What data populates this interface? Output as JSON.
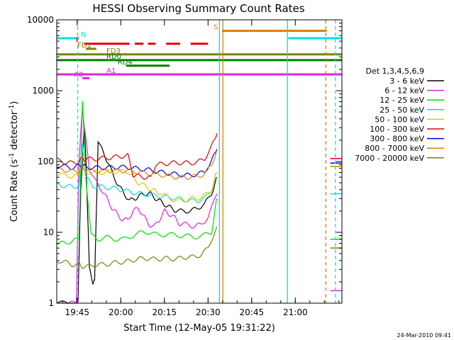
{
  "chart_data": {
    "type": "line",
    "title": "HESSI Observing Summary Count Rates",
    "xlabel": "Start Time (12-May-05 19:31:22)",
    "ylabel_main": "Count Rate (s",
    "ylabel_sup1": "-1",
    "ylabel_mid": " detector",
    "ylabel_sup2": "-1",
    "ylabel_end": ")",
    "yscale": "log",
    "ylim": [
      1,
      10000
    ],
    "xlim_minutes": [
      19.633,
      21.267
    ],
    "x_ticks": [
      {
        "label": "19:45",
        "t": 19.75
      },
      {
        "label": "20:00",
        "t": 20.0
      },
      {
        "label": "20:15",
        "t": 20.25
      },
      {
        "label": "20:30",
        "t": 20.5
      },
      {
        "label": "20:45",
        "t": 20.75
      },
      {
        "label": "21:00",
        "t": 21.0
      }
    ],
    "y_ticks": [
      {
        "label": "1",
        "v": 1
      },
      {
        "label": "10",
        "v": 10
      },
      {
        "label": "100",
        "v": 100
      },
      {
        "label": "1000",
        "v": 1000
      },
      {
        "label": "10000",
        "v": 10000
      }
    ],
    "legend_title": "Det 1,3,4,5,6,9",
    "legend_position": "right",
    "series": [
      {
        "name": "3 - 6 keV",
        "color": "#000000",
        "points": [
          [
            19.636,
            1
          ],
          [
            19.7,
            1
          ],
          [
            19.755,
            1
          ],
          [
            19.77,
            40
          ],
          [
            19.79,
            300
          ],
          [
            19.8,
            120
          ],
          [
            19.82,
            3
          ],
          [
            19.84,
            2
          ],
          [
            19.85,
            2
          ],
          [
            19.87,
            200
          ],
          [
            19.9,
            130
          ],
          [
            19.93,
            95
          ],
          [
            19.96,
            60
          ],
          [
            19.99,
            45
          ],
          [
            20.02,
            35
          ],
          [
            20.05,
            28
          ],
          [
            20.08,
            30
          ],
          [
            20.11,
            33
          ],
          [
            20.14,
            35
          ],
          [
            20.17,
            35
          ],
          [
            20.2,
            30
          ],
          [
            20.23,
            27
          ],
          [
            20.26,
            24
          ],
          [
            20.29,
            22
          ],
          [
            20.32,
            20
          ],
          [
            20.36,
            20
          ],
          [
            20.4,
            20
          ],
          [
            20.44,
            22
          ],
          [
            20.48,
            25
          ],
          [
            20.52,
            35
          ],
          [
            20.55,
            60
          ]
        ]
      },
      {
        "name": "6 - 12 keV",
        "color": "#e020e0",
        "points": [
          [
            19.636,
            1
          ],
          [
            19.7,
            1
          ],
          [
            19.745,
            1
          ],
          [
            19.76,
            90
          ],
          [
            19.78,
            600
          ],
          [
            19.8,
            200
          ],
          [
            19.82,
            80
          ],
          [
            19.86,
            50
          ],
          [
            19.89,
            40
          ],
          [
            19.92,
            30
          ],
          [
            19.95,
            22
          ],
          [
            19.98,
            18
          ],
          [
            20.01,
            15
          ],
          [
            20.04,
            15
          ],
          [
            20.07,
            20
          ],
          [
            20.1,
            22
          ],
          [
            20.13,
            17
          ],
          [
            20.16,
            13
          ],
          [
            20.19,
            12
          ],
          [
            20.22,
            15
          ],
          [
            20.25,
            20
          ],
          [
            20.28,
            18
          ],
          [
            20.31,
            16
          ],
          [
            20.34,
            13
          ],
          [
            20.38,
            13
          ],
          [
            20.42,
            12
          ],
          [
            20.46,
            13
          ],
          [
            20.5,
            16
          ],
          [
            20.55,
            35
          ]
        ]
      },
      {
        "name": "12 - 25 keV",
        "color": "#00e000",
        "points": [
          [
            19.636,
            7
          ],
          [
            19.68,
            7
          ],
          [
            19.72,
            7.5
          ],
          [
            19.76,
            8
          ],
          [
            19.78,
            700
          ],
          [
            19.8,
            60
          ],
          [
            19.83,
            9
          ],
          [
            19.87,
            8
          ],
          [
            19.92,
            8.5
          ],
          [
            19.97,
            8
          ],
          [
            20.02,
            8
          ],
          [
            20.07,
            9
          ],
          [
            20.12,
            10
          ],
          [
            20.17,
            10
          ],
          [
            20.22,
            9
          ],
          [
            20.27,
            9.5
          ],
          [
            20.32,
            9
          ],
          [
            20.37,
            9
          ],
          [
            20.42,
            8.5
          ],
          [
            20.47,
            9
          ],
          [
            20.52,
            10
          ],
          [
            20.55,
            30
          ]
        ]
      },
      {
        "name": "25 - 50 keV",
        "color": "#00e0e0",
        "points": [
          [
            19.636,
            48
          ],
          [
            19.68,
            45
          ],
          [
            19.72,
            44
          ],
          [
            19.76,
            45
          ],
          [
            19.78,
            180
          ],
          [
            19.8,
            60
          ],
          [
            19.84,
            45
          ],
          [
            19.88,
            44
          ],
          [
            19.92,
            43
          ],
          [
            19.96,
            42
          ],
          [
            20.0,
            40
          ],
          [
            20.04,
            38
          ],
          [
            20.08,
            36
          ],
          [
            20.12,
            35
          ],
          [
            20.16,
            34
          ],
          [
            20.2,
            33
          ],
          [
            20.24,
            32
          ],
          [
            20.28,
            31
          ],
          [
            20.32,
            30
          ],
          [
            20.36,
            29
          ],
          [
            20.4,
            28
          ],
          [
            20.44,
            28
          ],
          [
            20.48,
            30
          ],
          [
            20.52,
            40
          ],
          [
            20.55,
            70
          ]
        ]
      },
      {
        "name": "50 - 100 keV",
        "color": "#e0c800",
        "points": [
          [
            19.636,
            68
          ],
          [
            19.68,
            63
          ],
          [
            19.72,
            62
          ],
          [
            19.76,
            63
          ],
          [
            19.78,
            120
          ],
          [
            19.8,
            72
          ],
          [
            19.84,
            70
          ],
          [
            19.88,
            70
          ],
          [
            19.92,
            71
          ],
          [
            19.96,
            72
          ],
          [
            20.0,
            72
          ],
          [
            20.04,
            72
          ],
          [
            20.07,
            60
          ],
          [
            20.1,
            50
          ],
          [
            20.14,
            45
          ],
          [
            20.17,
            40
          ],
          [
            20.2,
            38
          ],
          [
            20.24,
            35
          ],
          [
            20.28,
            30
          ],
          [
            20.32,
            28
          ],
          [
            20.36,
            28
          ],
          [
            20.4,
            30
          ],
          [
            20.44,
            30
          ],
          [
            20.48,
            33
          ],
          [
            20.52,
            40
          ],
          [
            20.55,
            70
          ]
        ]
      },
      {
        "name": "100 - 300 keV",
        "color": "#e00000",
        "points": [
          [
            19.636,
            105
          ],
          [
            19.68,
            98
          ],
          [
            19.72,
            95
          ],
          [
            19.76,
            100
          ],
          [
            19.78,
            110
          ],
          [
            19.8,
            108
          ],
          [
            19.84,
            108
          ],
          [
            19.88,
            110
          ],
          [
            19.92,
            112
          ],
          [
            19.96,
            115
          ],
          [
            20.0,
            118
          ],
          [
            20.04,
            122
          ],
          [
            20.07,
            65
          ],
          [
            20.1,
            62
          ],
          [
            20.14,
            60
          ],
          [
            20.17,
            58
          ],
          [
            20.2,
            90
          ],
          [
            20.24,
            92
          ],
          [
            20.28,
            95
          ],
          [
            20.32,
            96
          ],
          [
            20.36,
            96
          ],
          [
            20.4,
            95
          ],
          [
            20.44,
            98
          ],
          [
            20.48,
            110
          ],
          [
            20.52,
            160
          ],
          [
            20.55,
            250
          ]
        ]
      },
      {
        "name": "300 - 800 keV",
        "color": "#0000e0",
        "points": [
          [
            19.636,
            88
          ],
          [
            19.68,
            85
          ],
          [
            19.72,
            82
          ],
          [
            19.76,
            85
          ],
          [
            19.78,
            90
          ],
          [
            19.8,
            83
          ],
          [
            19.84,
            82
          ],
          [
            19.88,
            82
          ],
          [
            19.92,
            82
          ],
          [
            19.96,
            83
          ],
          [
            20.0,
            83
          ],
          [
            20.04,
            83
          ],
          [
            20.08,
            80
          ],
          [
            20.12,
            78
          ],
          [
            20.16,
            76
          ],
          [
            20.2,
            73
          ],
          [
            20.24,
            70
          ],
          [
            20.28,
            68
          ],
          [
            20.32,
            66
          ],
          [
            20.36,
            64
          ],
          [
            20.4,
            64
          ],
          [
            20.44,
            66
          ],
          [
            20.48,
            72
          ],
          [
            20.52,
            100
          ],
          [
            20.55,
            150
          ]
        ]
      },
      {
        "name": "800 - 7000 keV",
        "color": "#e08000",
        "points": [
          [
            19.636,
            80
          ],
          [
            19.68,
            76
          ],
          [
            19.72,
            72
          ],
          [
            19.76,
            75
          ],
          [
            19.78,
            80
          ],
          [
            19.8,
            76
          ],
          [
            19.84,
            74
          ],
          [
            19.88,
            74
          ],
          [
            19.92,
            74
          ],
          [
            19.96,
            74
          ],
          [
            20.0,
            74
          ],
          [
            20.04,
            74
          ],
          [
            20.08,
            72
          ],
          [
            20.12,
            70
          ],
          [
            20.16,
            68
          ],
          [
            20.2,
            66
          ],
          [
            20.24,
            64
          ],
          [
            20.28,
            62
          ],
          [
            20.32,
            60
          ],
          [
            20.36,
            60
          ],
          [
            20.4,
            60
          ],
          [
            20.44,
            62
          ],
          [
            20.48,
            66
          ],
          [
            20.52,
            90
          ],
          [
            20.55,
            140
          ]
        ]
      },
      {
        "name": "7000 - 20000 keV",
        "color": "#808000",
        "points": [
          [
            19.636,
            4
          ],
          [
            19.68,
            3.8
          ],
          [
            19.72,
            3.5
          ],
          [
            19.76,
            3.5
          ],
          [
            19.78,
            3.3
          ],
          [
            19.82,
            3.3
          ],
          [
            19.86,
            3.5
          ],
          [
            19.9,
            3.5
          ],
          [
            19.94,
            3.6
          ],
          [
            19.98,
            3.8
          ],
          [
            20.02,
            3.8
          ],
          [
            20.06,
            4
          ],
          [
            20.1,
            4.2
          ],
          [
            20.14,
            4.3
          ],
          [
            20.18,
            4.2
          ],
          [
            20.22,
            4.2
          ],
          [
            20.26,
            4.3
          ],
          [
            20.3,
            4.2
          ],
          [
            20.34,
            4.3
          ],
          [
            20.38,
            4.5
          ],
          [
            20.42,
            4.5
          ],
          [
            20.46,
            4.8
          ],
          [
            20.5,
            6
          ],
          [
            20.55,
            12
          ]
        ]
      }
    ],
    "flag_bars": [
      {
        "label": "N",
        "color": "#00e0e0",
        "y": 5500,
        "segments": [
          [
            19.633,
            19.755
          ],
          [
            20.96,
            21.267
          ]
        ]
      },
      {
        "label": "S",
        "color": "#e08000",
        "y": 7000,
        "segments": [
          [
            20.58,
            21.18
          ]
        ]
      },
      {
        "label": "F",
        "color": "#e00000",
        "y": 4600,
        "segments": [
          [
            19.79,
            20.05
          ],
          [
            20.08,
            20.13
          ],
          [
            20.155,
            20.2
          ],
          [
            20.26,
            20.34
          ],
          [
            20.4,
            20.5
          ]
        ]
      },
      {
        "label": "FD1",
        "color": "#808000",
        "y": 3900,
        "segments": [
          [
            19.8,
            19.86
          ]
        ]
      },
      {
        "label": "FD3",
        "color": "#808000",
        "y": 3250,
        "segments": [
          [
            19.633,
            21.267
          ]
        ]
      },
      {
        "label": "RD0",
        "color": "#008000",
        "y": 2700,
        "segments": [
          [
            19.633,
            21.267
          ]
        ]
      },
      {
        "label": "RD4",
        "color": "#008000",
        "y": 2250,
        "segments": [
          [
            20.03,
            20.28
          ]
        ]
      },
      {
        "label": "A1",
        "color": "#e020e0",
        "y": 1700,
        "segments": [
          [
            19.633,
            21.267
          ]
        ]
      },
      {
        "label": "A0",
        "color": "#e020e0",
        "y": 1500,
        "segments": [
          [
            19.78,
            19.82
          ]
        ]
      }
    ],
    "vertical_markers": [
      {
        "t": 19.753,
        "color": "#00e0e0",
        "style": "dashed"
      },
      {
        "t": 20.565,
        "color": "#00e0e0",
        "style": "solid"
      },
      {
        "t": 20.585,
        "color": "#e08000",
        "style": "solid"
      },
      {
        "t": 20.955,
        "color": "#00e0e0",
        "style": "solid"
      },
      {
        "t": 21.175,
        "color": "#e08000",
        "style": "dashed"
      },
      {
        "t": 21.23,
        "color": "#00e0e0",
        "style": "dashed"
      }
    ],
    "right_edge_segment": {
      "t_start": 21.2,
      "t_end": 21.267,
      "values": [
        {
          "color": "#e00000",
          "v": 110
        },
        {
          "color": "#0000e0",
          "v": 95
        },
        {
          "color": "#e08000",
          "v": 85
        },
        {
          "color": "#00e0e0",
          "v": 35
        },
        {
          "color": "#00e000",
          "v": 8
        },
        {
          "color": "#808000",
          "v": 6
        },
        {
          "color": "#e020e0",
          "v": 1.5
        }
      ]
    },
    "footer_date": "24-Mar-2010 09:41"
  }
}
